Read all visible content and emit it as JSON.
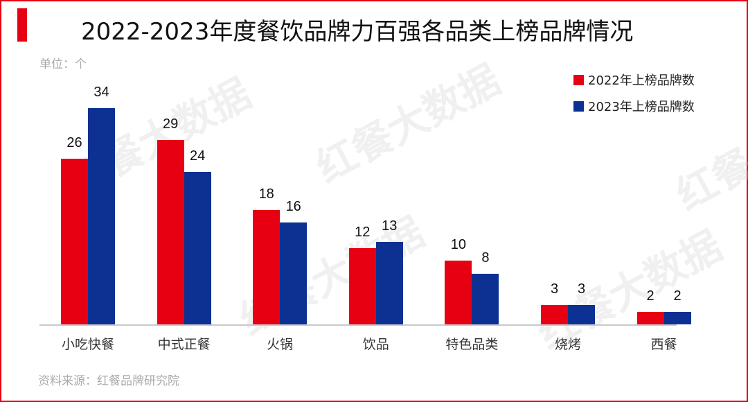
{
  "header": {
    "title": "2022-2023年度餐饮品牌力百强各品类上榜品牌情况",
    "unit": "单位：个"
  },
  "legend": [
    {
      "label": "2022年上榜品牌数",
      "color": "#e60012"
    },
    {
      "label": "2023年上榜品牌数",
      "color": "#0d3192"
    }
  ],
  "footer": {
    "source": "资料来源：红餐品牌研究院"
  },
  "watermark": {
    "text": "红餐大数据"
  },
  "colors": {
    "accent": "#e60012",
    "series_2022": "#e60012",
    "series_2023": "#0d3192"
  },
  "chart_data": {
    "type": "bar",
    "title": "2022-2023年度餐饮品牌力百强各品类上榜品牌情况",
    "xlabel": "",
    "ylabel": "单位：个",
    "categories": [
      "小吃快餐",
      "中式正餐",
      "火锅",
      "饮品",
      "特色品类",
      "烧烤",
      "西餐"
    ],
    "series": [
      {
        "name": "2022年上榜品牌数",
        "values": [
          26,
          29,
          18,
          12,
          10,
          3,
          2
        ],
        "color": "#e60012"
      },
      {
        "name": "2023年上榜品牌数",
        "values": [
          34,
          24,
          16,
          13,
          8,
          3,
          2
        ],
        "color": "#0d3192"
      }
    ],
    "ylim": [
      0,
      36
    ],
    "grid": false,
    "legend_position": "top-right",
    "data_labels": true,
    "source": "资料来源：红餐品牌研究院"
  }
}
